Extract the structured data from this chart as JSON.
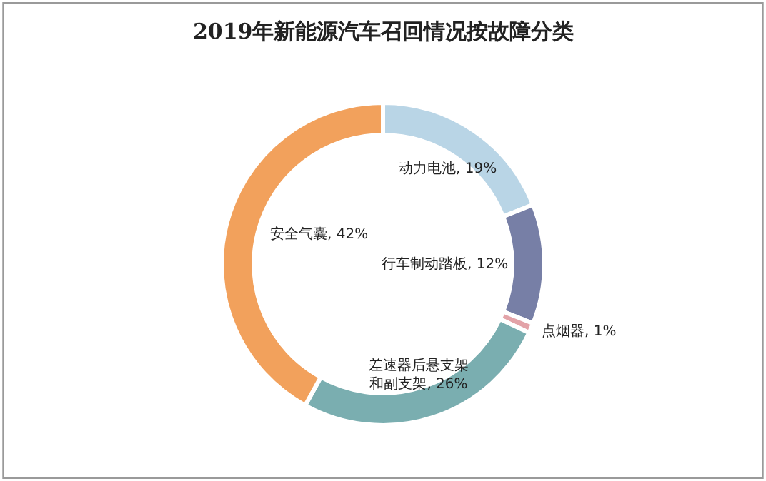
{
  "chart_data": {
    "type": "donut",
    "title": "2019年新能源汽车召回情况按故障分类",
    "categories": [
      "动力电池",
      "行车制动踏板",
      "点烟器",
      "差速器后悬支架和副支架",
      "安全气囊"
    ],
    "values": [
      19,
      12,
      1,
      26,
      42
    ],
    "value_labels": [
      "19%",
      "12%",
      "1%",
      "26%",
      "42%"
    ],
    "colors": [
      "#b9d5e6",
      "#777fa6",
      "#e3a3a8",
      "#7aaeb0",
      "#f2a15c"
    ],
    "legend": false
  }
}
